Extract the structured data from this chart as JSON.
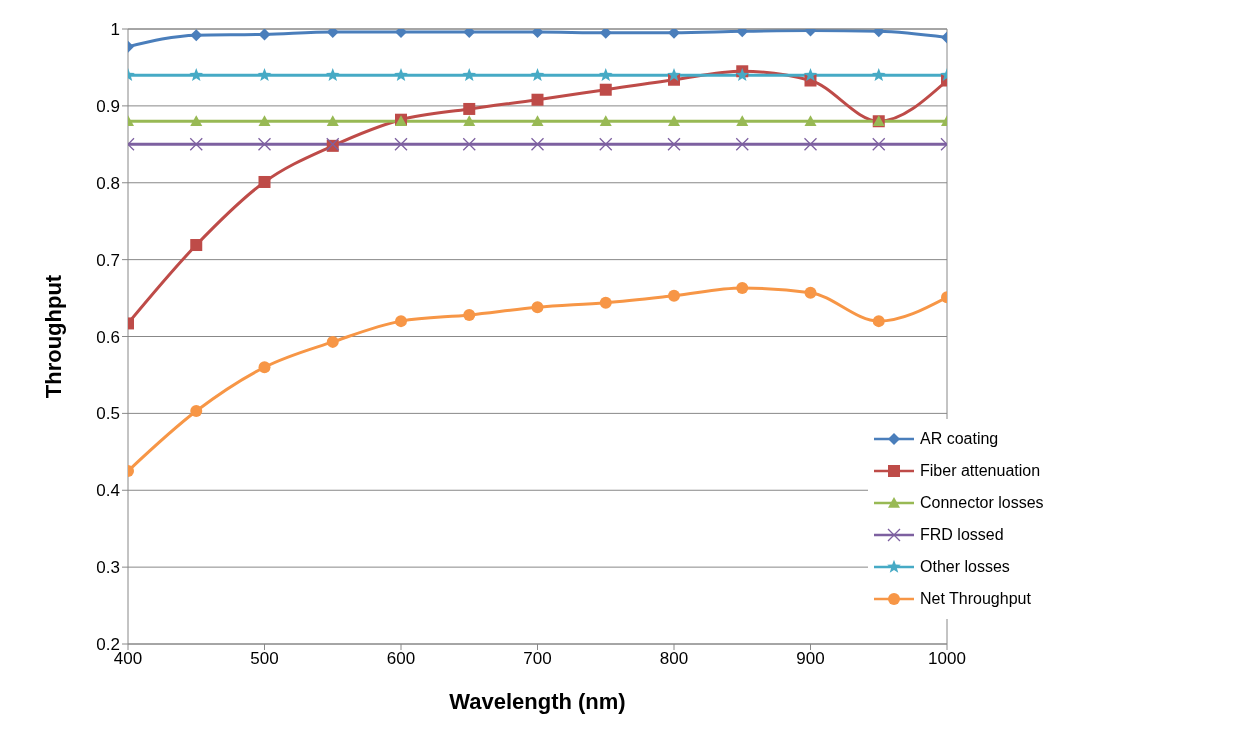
{
  "chart_data": {
    "type": "line",
    "xlabel": "Wavelength (nm)",
    "ylabel": "Throughput",
    "x": [
      400,
      450,
      500,
      550,
      600,
      650,
      700,
      750,
      800,
      850,
      900,
      950,
      1000
    ],
    "xlim": [
      400,
      1000
    ],
    "xticks": [
      400,
      500,
      600,
      700,
      800,
      900,
      1000
    ],
    "ylim": [
      0.2,
      1
    ],
    "yticks": [
      0.2,
      0.3,
      0.4,
      0.5,
      0.6,
      0.7,
      0.8,
      0.9,
      1
    ],
    "grid": "y",
    "legend": "bottom right",
    "series": [
      {
        "name": "AR coating",
        "color": "#4a7ebb",
        "marker": "diamond",
        "values": [
          0.977,
          0.992,
          0.993,
          0.996,
          0.996,
          0.996,
          0.996,
          0.995,
          0.995,
          0.997,
          0.998,
          0.997,
          0.989
        ]
      },
      {
        "name": "Fiber attenuation",
        "color": "#be4b48",
        "marker": "square",
        "values": [
          0.617,
          0.719,
          0.801,
          0.848,
          0.882,
          0.896,
          0.908,
          0.921,
          0.934,
          0.945,
          0.933,
          0.88,
          0.933
        ]
      },
      {
        "name": "Connector losses",
        "color": "#98b954",
        "marker": "triangle",
        "values": [
          0.88,
          0.88,
          0.88,
          0.88,
          0.88,
          0.88,
          0.88,
          0.88,
          0.88,
          0.88,
          0.88,
          0.88,
          0.88
        ]
      },
      {
        "name": "FRD lossed",
        "color": "#7d60a0",
        "marker": "cross",
        "values": [
          0.85,
          0.85,
          0.85,
          0.85,
          0.85,
          0.85,
          0.85,
          0.85,
          0.85,
          0.85,
          0.85,
          0.85,
          0.85
        ]
      },
      {
        "name": "Other losses",
        "color": "#46aac5",
        "marker": "star",
        "values": [
          0.94,
          0.94,
          0.94,
          0.94,
          0.94,
          0.94,
          0.94,
          0.94,
          0.94,
          0.94,
          0.94,
          0.94,
          0.94
        ]
      },
      {
        "name": "Net Throughput",
        "color": "#f79646",
        "marker": "circle",
        "values": [
          0.425,
          0.503,
          0.56,
          0.593,
          0.62,
          0.628,
          0.638,
          0.644,
          0.653,
          0.663,
          0.657,
          0.62,
          0.651
        ]
      }
    ]
  }
}
